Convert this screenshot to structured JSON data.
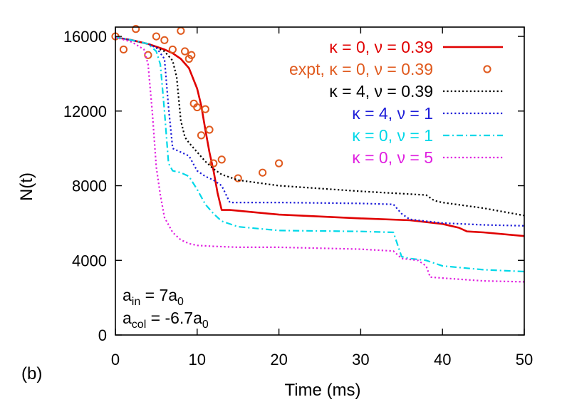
{
  "chart_data": {
    "type": "line",
    "panel_label": "(b)",
    "xlabel": "Time (ms)",
    "ylabel": "N(t)",
    "xlim": [
      0,
      50
    ],
    "ylim": [
      0,
      16500
    ],
    "xticks": [
      0,
      10,
      20,
      30,
      40,
      50
    ],
    "yticks": [
      0,
      4000,
      8000,
      12000,
      16000
    ],
    "ytick_labels": [
      "0",
      "4000",
      "8000",
      "12000",
      "16000"
    ],
    "grid": false,
    "legend_position": "top-right",
    "annotations": {
      "a_in": {
        "main": "a",
        "sub": "in",
        "rest": " = 7a",
        "sub2": "0"
      },
      "a_col": {
        "main": "a",
        "sub": "col",
        "rest": " = -6.7a",
        "sub2": "0"
      }
    },
    "series": [
      {
        "name": "κ = 0, ν = 0.39",
        "color": "#e00000",
        "style": "solid",
        "x": [
          0,
          2,
          4,
          6,
          7,
          8,
          9,
          10,
          10.5,
          11,
          11.5,
          12,
          12.5,
          13,
          14,
          20,
          30,
          36,
          40,
          42,
          43,
          45,
          50
        ],
        "y": [
          15950,
          15800,
          15600,
          15300,
          15100,
          14800,
          14300,
          13200,
          12300,
          11000,
          9800,
          8800,
          7600,
          6700,
          6700,
          6450,
          6250,
          6150,
          5950,
          5750,
          5550,
          5500,
          5300
        ]
      },
      {
        "name": "expt, κ = 0, ν = 0.39",
        "color": "#e05a1e",
        "style": "points",
        "x": [
          0,
          1,
          2.5,
          4,
          5,
          6,
          7,
          8,
          8.5,
          9,
          9.3,
          9.6,
          10,
          10.5,
          11,
          11.5,
          12,
          13,
          15,
          18,
          20
        ],
        "y": [
          16000,
          15300,
          16400,
          15000,
          16000,
          15800,
          15300,
          16300,
          15200,
          14800,
          15000,
          12400,
          12200,
          10700,
          12100,
          11000,
          9200,
          9400,
          8400,
          8700,
          9200
        ]
      },
      {
        "name": "κ = 4, ν = 0.39",
        "color": "#000000",
        "style": "dotted",
        "x": [
          0,
          2,
          4,
          6,
          7,
          7.5,
          8,
          8.5,
          9,
          10,
          11,
          12,
          13,
          15,
          20,
          30,
          38,
          39,
          40,
          45,
          50
        ],
        "y": [
          15950,
          15800,
          15600,
          15200,
          14700,
          13800,
          11500,
          10600,
          10300,
          9800,
          9300,
          8900,
          8600,
          8300,
          8000,
          7700,
          7500,
          7200,
          7100,
          6800,
          6400
        ]
      },
      {
        "name": "κ = 4, ν = 1",
        "color": "#1c1cd8",
        "style": "dotted",
        "x": [
          0,
          2,
          4,
          5,
          6,
          6.5,
          7,
          8,
          9,
          10,
          11,
          12,
          13,
          14,
          20,
          30,
          34,
          35,
          36,
          40,
          45,
          50
        ],
        "y": [
          15950,
          15800,
          15600,
          15400,
          14800,
          12200,
          10000,
          9800,
          9600,
          8800,
          8500,
          8300,
          8000,
          7100,
          7100,
          7050,
          7000,
          6500,
          6200,
          6000,
          5900,
          5850
        ]
      },
      {
        "name": "κ = 0, ν = 1",
        "color": "#00d8e8",
        "style": "dashdot",
        "x": [
          0,
          2,
          4,
          5,
          5.5,
          6,
          6.5,
          7,
          8,
          9,
          10,
          11,
          12,
          13,
          15,
          20,
          30,
          34,
          35,
          36,
          38,
          40,
          45,
          50
        ],
        "y": [
          15950,
          15800,
          15600,
          15200,
          14500,
          12000,
          9200,
          8800,
          8700,
          8500,
          7800,
          7000,
          6500,
          6100,
          5800,
          5600,
          5550,
          5500,
          4200,
          4100,
          4000,
          3700,
          3500,
          3400
        ]
      },
      {
        "name": "κ = 0, ν = 5",
        "color": "#e020e0",
        "style": "dotted",
        "x": [
          0,
          2,
          3.5,
          4,
          4.5,
          5,
          5.5,
          6,
          7,
          8,
          9,
          10,
          12,
          15,
          20,
          30,
          34,
          35,
          37,
          38,
          38.5,
          40,
          45,
          50
        ],
        "y": [
          15950,
          15700,
          15300,
          14500,
          12000,
          9000,
          7500,
          6300,
          5500,
          5100,
          4900,
          4800,
          4750,
          4700,
          4700,
          4600,
          4500,
          4100,
          4000,
          3700,
          3100,
          3050,
          2900,
          2850
        ]
      }
    ]
  }
}
